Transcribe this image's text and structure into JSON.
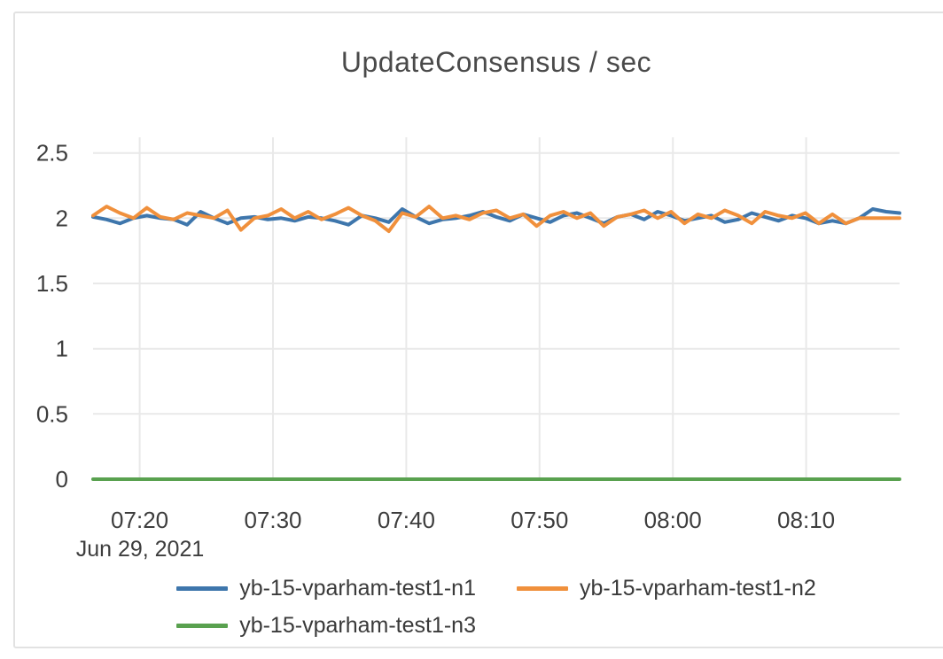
{
  "chart_data": {
    "type": "line",
    "title": "UpdateConsensus / sec",
    "x_date_label": "Jun 29, 2021",
    "x_axis": {
      "ticks": [
        {
          "label": "07:20",
          "minute": 3.5
        },
        {
          "label": "07:30",
          "minute": 13.5
        },
        {
          "label": "07:40",
          "minute": 23.5
        },
        {
          "label": "07:50",
          "minute": 33.5
        },
        {
          "label": "08:00",
          "minute": 43.5
        },
        {
          "label": "08:10",
          "minute": 53.5
        }
      ]
    },
    "y_axis": {
      "ticks": [
        {
          "value": 0,
          "label": "0"
        },
        {
          "value": 0.5,
          "label": "0.5"
        },
        {
          "value": 1,
          "label": "1"
        },
        {
          "value": 1.5,
          "label": "1.5"
        },
        {
          "value": 2,
          "label": "2"
        },
        {
          "value": 2.5,
          "label": "2.5"
        }
      ],
      "ylim": [
        0,
        2.62
      ]
    },
    "grid": true,
    "legend_position": "bottom",
    "series": [
      {
        "name": "yb-15-vparham-test1-n1",
        "short": "n1",
        "color": "#3e76ac",
        "values": [
          2.01,
          1.99,
          1.96,
          2.0,
          2.02,
          2.0,
          1.99,
          1.95,
          2.05,
          2.0,
          1.96,
          2.0,
          2.01,
          1.99,
          2.0,
          1.98,
          2.01,
          2.0,
          1.98,
          1.95,
          2.02,
          2.0,
          1.97,
          2.07,
          2.01,
          1.96,
          1.99,
          2.0,
          2.02,
          2.05,
          2.01,
          1.98,
          2.03,
          2.0,
          1.97,
          2.02,
          2.04,
          2.0,
          1.96,
          2.01,
          2.03,
          1.99,
          2.05,
          2.02,
          1.98,
          2.0,
          2.02,
          1.97,
          1.99,
          2.04,
          2.01,
          1.98,
          2.02,
          2.0,
          1.96,
          1.98,
          1.96,
          2.0,
          2.07,
          2.05,
          2.04
        ]
      },
      {
        "name": "yb-15-vparham-test1-n2",
        "short": "n2",
        "color": "#f0903c",
        "values": [
          2.02,
          2.09,
          2.04,
          2.0,
          2.08,
          2.01,
          1.99,
          2.04,
          2.02,
          2.0,
          2.06,
          1.91,
          2.0,
          2.02,
          2.07,
          2.0,
          2.05,
          1.99,
          2.03,
          2.08,
          2.02,
          1.98,
          1.9,
          2.04,
          2.01,
          2.09,
          2.0,
          2.02,
          1.99,
          2.04,
          2.06,
          2.0,
          2.03,
          1.94,
          2.02,
          2.05,
          2.0,
          2.04,
          1.94,
          2.01,
          2.03,
          2.06,
          2.0,
          2.05,
          1.96,
          2.03,
          2.0,
          2.06,
          2.02,
          1.96,
          2.05,
          2.02,
          2.0,
          2.04,
          1.96,
          2.03,
          1.96,
          2.0,
          2.0,
          2.0,
          2.0
        ]
      },
      {
        "name": "yb-15-vparham-test1-n3",
        "short": "n3",
        "color": "#59a14f",
        "values": [
          0,
          0,
          0,
          0,
          0,
          0,
          0,
          0,
          0,
          0,
          0,
          0,
          0,
          0,
          0,
          0,
          0,
          0,
          0,
          0,
          0,
          0,
          0,
          0,
          0,
          0,
          0,
          0,
          0,
          0,
          0,
          0,
          0,
          0,
          0,
          0,
          0,
          0,
          0,
          0,
          0,
          0,
          0,
          0,
          0,
          0,
          0,
          0,
          0,
          0,
          0,
          0,
          0,
          0,
          0,
          0,
          0,
          0,
          0,
          0,
          0
        ]
      }
    ]
  }
}
